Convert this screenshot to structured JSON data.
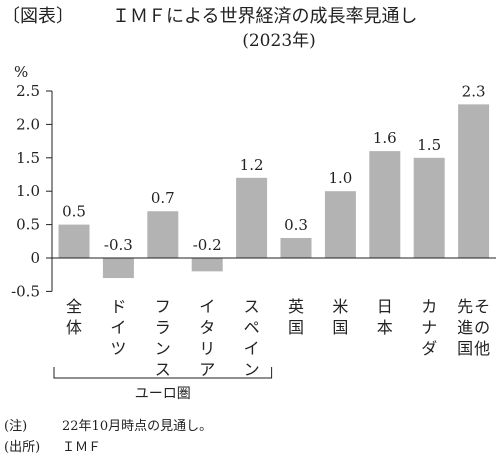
{
  "header": {
    "tag": "〔図表〕",
    "title": "ＩＭＦによる世界経済の成長率見通し",
    "subtitle": "(2023年)"
  },
  "chart_data": {
    "type": "bar",
    "ylabel": "%",
    "ylim": [
      -0.5,
      2.5
    ],
    "yticks": [
      "2.5",
      "2.0",
      "1.5",
      "1.0",
      "0.5",
      "0",
      "-0.5"
    ],
    "ytick_values": [
      2.5,
      2.0,
      1.5,
      1.0,
      0.5,
      0,
      -0.5
    ],
    "categories": [
      "全体",
      "ドイツ",
      "フランス",
      "イタリア",
      "スペイン",
      "英国",
      "米国",
      "日本",
      "カナダ",
      "先進国その他"
    ],
    "category_columns": [
      [
        "全体"
      ],
      [
        "ドイツ"
      ],
      [
        "フランス"
      ],
      [
        "イタリア"
      ],
      [
        "スペイン"
      ],
      [
        "英国"
      ],
      [
        "米国"
      ],
      [
        "日本"
      ],
      [
        "カナダ"
      ],
      [
        "その他",
        "先進国"
      ]
    ],
    "values": [
      0.5,
      -0.3,
      0.7,
      -0.2,
      1.2,
      0.3,
      1.0,
      1.6,
      1.5,
      2.3
    ],
    "value_labels": [
      "0.5",
      "-0.3",
      "0.7",
      "-0.2",
      "1.2",
      "0.3",
      "1.0",
      "1.6",
      "1.5",
      "2.3"
    ],
    "group": {
      "label": "ユーロ圏",
      "from": 0,
      "to": 4
    },
    "bar_color": "#b3b3b3",
    "grid": false
  },
  "notes": [
    {
      "key": "(注)",
      "text": "22年10月時点の見通し。"
    },
    {
      "key": "(出所)",
      "text": "ＩＭＦ"
    }
  ]
}
